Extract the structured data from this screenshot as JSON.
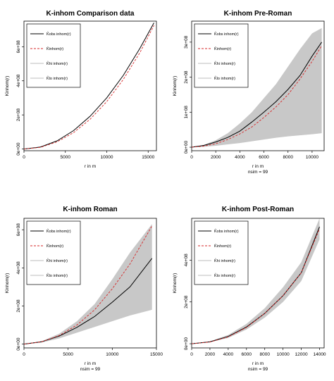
{
  "legend_entries": [
    {
      "label": "K̂obs inhom(r)",
      "style": "solid",
      "color": "#000000"
    },
    {
      "label": "K̄inhom(r)",
      "style": "dashed",
      "color": "#d62728"
    },
    {
      "label": "K̂hi inhom(r)",
      "style": "solid",
      "color": "#bdbdbd"
    },
    {
      "label": "K̂lo inhom(r)",
      "style": "solid",
      "color": "#bdbdbd"
    }
  ],
  "colors": {
    "observed": "#000000",
    "theoretical": "#d62728",
    "envelope": "#c8c8c8"
  },
  "chart_data": [
    {
      "type": "line",
      "title": "K-inhom Comparison data",
      "xlabel": "r in m",
      "sublabel": "",
      "ylabel": "Kinhom(r)",
      "xlim": [
        0,
        16000
      ],
      "ylim": [
        -10000000.0,
        750000000.0
      ],
      "xticks": [
        0,
        5000,
        10000,
        15000
      ],
      "xtick_labels": [
        "0",
        "5000",
        "10000",
        "15000"
      ],
      "yticks": [
        0,
        200000000.0,
        400000000.0,
        600000000.0
      ],
      "ytick_labels": [
        "0e+00",
        "2e+08",
        "4e+08",
        "6e+08"
      ],
      "x": [
        0,
        2000,
        4000,
        6000,
        8000,
        10000,
        12000,
        14000,
        15700
      ],
      "series": [
        {
          "name": "obs",
          "role": "observed",
          "values": [
            0,
            12000000.0,
            48000000.0,
            108000000.0,
            193000000.0,
            300000000.0,
            432000000.0,
            590000000.0,
            740000000.0
          ]
        },
        {
          "name": "theo",
          "role": "theoretical",
          "values": [
            0,
            10000000.0,
            42000000.0,
            96000000.0,
            175000000.0,
            278000000.0,
            408000000.0,
            565000000.0,
            725000000.0
          ]
        }
      ],
      "envelope": null
    },
    {
      "type": "line",
      "title": "K-inhom Pre-Roman",
      "xlabel": "r in m",
      "sublabel": "nsim = 99",
      "ylabel": "Kinhom(r)",
      "xlim": [
        0,
        11000
      ],
      "ylim": [
        -10000000.0,
        360000000.0
      ],
      "xticks": [
        0,
        2000,
        4000,
        6000,
        8000,
        10000
      ],
      "xtick_labels": [
        "0",
        "2000",
        "4000",
        "6000",
        "8000",
        "10000"
      ],
      "yticks": [
        0,
        100000000.0,
        200000000.0,
        300000000.0
      ],
      "ytick_labels": [
        "0e+00",
        "1e+08",
        "2e+08",
        "3e+08"
      ],
      "x": [
        0,
        1000,
        2000,
        3000,
        4000,
        5000,
        6000,
        7000,
        8000,
        9000,
        10000,
        10800
      ],
      "series": [
        {
          "name": "obs",
          "role": "observed",
          "values": [
            0,
            5000000.0,
            15000000.0,
            28000000.0,
            46000000.0,
            72000000.0,
            100000000.0,
            130000000.0,
            165000000.0,
            205000000.0,
            260000000.0,
            300000000.0
          ]
        },
        {
          "name": "theo",
          "role": "theoretical",
          "values": [
            0,
            3000000.0,
            10000000.0,
            22000000.0,
            38000000.0,
            58000000.0,
            85000000.0,
            115000000.0,
            150000000.0,
            195000000.0,
            245000000.0,
            290000000.0
          ]
        }
      ],
      "envelope": {
        "lo": [
          0,
          1000000.0,
          4000000.0,
          8000000.0,
          12000000.0,
          17000000.0,
          22000000.0,
          27000000.0,
          31000000.0,
          34000000.0,
          37000000.0,
          40000000.0
        ],
        "hi": [
          0,
          6000000.0,
          20000000.0,
          40000000.0,
          68000000.0,
          100000000.0,
          140000000.0,
          180000000.0,
          230000000.0,
          280000000.0,
          325000000.0,
          340000000.0
        ]
      }
    },
    {
      "type": "line",
      "title": "K-inhom Roman",
      "xlabel": "r in m",
      "sublabel": "nsim = 99",
      "ylabel": "Kinhom(r)",
      "xlim": [
        0,
        15000
      ],
      "ylim": [
        -20000000.0,
        660000000.0
      ],
      "xticks": [
        0,
        5000,
        10000,
        15000
      ],
      "xtick_labels": [
        "0",
        "5000",
        "10000",
        "15000"
      ],
      "yticks": [
        0,
        200000000.0,
        400000000.0,
        600000000.0
      ],
      "ytick_labels": [
        "0e+00",
        "2e+08",
        "4e+08",
        "6e+08"
      ],
      "x": [
        0,
        2000,
        4000,
        6000,
        8000,
        10000,
        12000,
        14500
      ],
      "series": [
        {
          "name": "obs",
          "role": "observed",
          "values": [
            0,
            12000000.0,
            42000000.0,
            88000000.0,
            145000000.0,
            220000000.0,
            300000000.0,
            450000000.0
          ]
        },
        {
          "name": "theo",
          "role": "theoretical",
          "values": [
            0,
            12000000.0,
            45000000.0,
            100000000.0,
            180000000.0,
            290000000.0,
            420000000.0,
            620000000.0
          ]
        }
      ],
      "envelope": {
        "lo": [
          0,
          8000000.0,
          30000000.0,
          60000000.0,
          90000000.0,
          120000000.0,
          150000000.0,
          180000000.0
        ],
        "hi": [
          0,
          15000000.0,
          55000000.0,
          120000000.0,
          210000000.0,
          340000000.0,
          480000000.0,
          630000000.0
        ]
      }
    },
    {
      "type": "line",
      "title": "K-inhom Post-Roman",
      "xlabel": "r in m",
      "sublabel": "nsim = 99",
      "ylabel": "Kinhom(r)",
      "xlim": [
        0,
        14500
      ],
      "ylim": [
        -20000000.0,
        600000000.0
      ],
      "xticks": [
        0,
        2000,
        4000,
        6000,
        8000,
        10000,
        12000,
        14000
      ],
      "xtick_labels": [
        "0",
        "2000",
        "4000",
        "6000",
        "8000",
        "10000",
        "12000",
        "14000"
      ],
      "yticks": [
        0,
        200000000.0,
        400000000.0
      ],
      "ytick_labels": [
        "0e+00",
        "2e+08",
        "4e+08"
      ],
      "x": [
        0,
        2000,
        4000,
        6000,
        8000,
        10000,
        12000,
        14000
      ],
      "series": [
        {
          "name": "obs",
          "role": "observed",
          "values": [
            0,
            9000000.0,
            35000000.0,
            80000000.0,
            145000000.0,
            230000000.0,
            340000000.0,
            560000000.0
          ]
        },
        {
          "name": "theo",
          "role": "theoretical",
          "values": [
            0,
            8000000.0,
            33000000.0,
            78000000.0,
            145000000.0,
            230000000.0,
            340000000.0,
            550000000.0
          ]
        }
      ],
      "envelope": {
        "lo": [
          0,
          7000000.0,
          28000000.0,
          68000000.0,
          125000000.0,
          200000000.0,
          300000000.0,
          500000000.0
        ],
        "hi": [
          0,
          11000000.0,
          42000000.0,
          95000000.0,
          170000000.0,
          270000000.0,
          390000000.0,
          600000000.0
        ]
      }
    }
  ]
}
